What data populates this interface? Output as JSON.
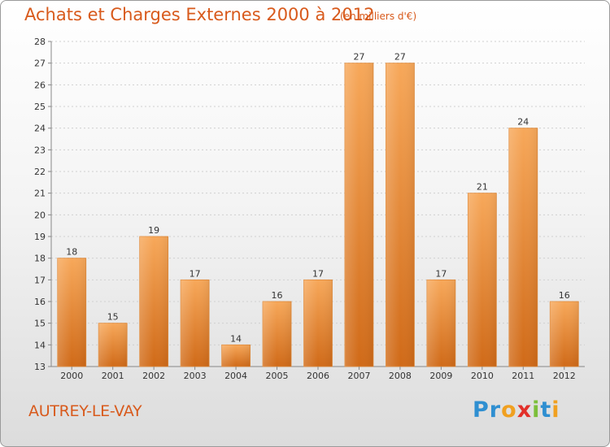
{
  "header": {
    "title": "Achats et Charges Externes 2000 à 2012",
    "subtitle": "(en milliers d'€)"
  },
  "footer": {
    "town": "AUTREY-LE-VAY",
    "logo": [
      "P",
      "r",
      "o",
      "x",
      "i",
      "t",
      "i"
    ]
  },
  "colors": {
    "accent": "#d85a1c",
    "bar_top": "#f7a85a",
    "bar_bottom": "#d06a18",
    "logo": [
      "#2f8fd1",
      "#2f8fd1",
      "#f0a020",
      "#e2302a",
      "#7cbf3a",
      "#2f8fd1",
      "#f0a020"
    ]
  },
  "chart_data": {
    "type": "bar",
    "title": "Achats et Charges Externes 2000 à 2012",
    "subtitle": "(en milliers d'€)",
    "categories": [
      "2000",
      "2001",
      "2002",
      "2003",
      "2004",
      "2005",
      "2006",
      "2007",
      "2008",
      "2009",
      "2010",
      "2011",
      "2012"
    ],
    "values": [
      18,
      15,
      19,
      17,
      14,
      16,
      17,
      27,
      27,
      17,
      21,
      24,
      16
    ],
    "ylim": [
      13,
      28
    ],
    "yticks": [
      13,
      14,
      15,
      16,
      17,
      18,
      19,
      20,
      21,
      22,
      23,
      24,
      25,
      26,
      27,
      28
    ],
    "grid": true,
    "data_labels": true
  }
}
